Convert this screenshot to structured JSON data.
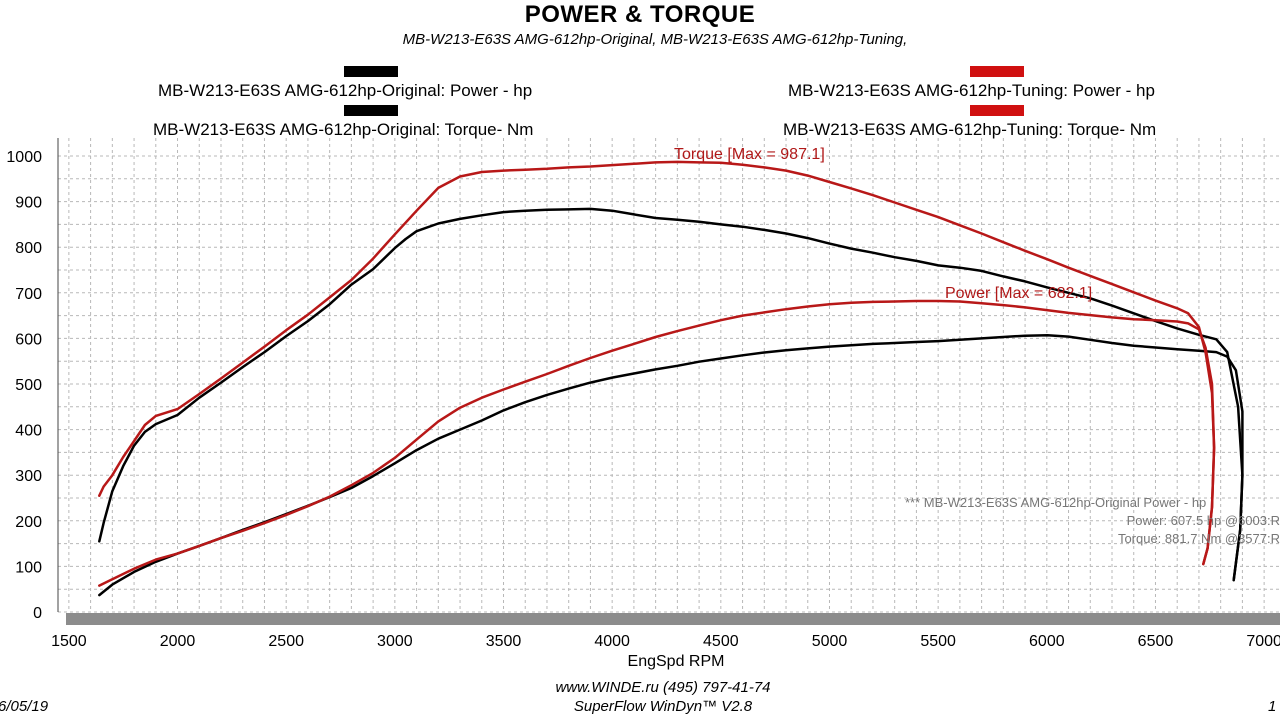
{
  "header": {
    "title": "POWER & TORQUE",
    "subtitle": "MB-W213-E63S AMG-612hp-Original, MB-W213-E63S AMG-612hp-Tuning,"
  },
  "legend": {
    "orig_power": "MB-W213-E63S AMG-612hp-Original: Power -  hp",
    "orig_torque": "MB-W213-E63S AMG-612hp-Original: Torque-  Nm",
    "tune_power": "MB-W213-E63S AMG-612hp-Tuning: Power -  hp",
    "tune_torque": "MB-W213-E63S AMG-612hp-Tuning: Torque-  Nm",
    "orig_color": "#000000",
    "tune_color": "#d01010"
  },
  "annotations": {
    "torque_max": "Torque [Max = 987.1]",
    "power_max": "Power  [Max = 682.1]",
    "summary_line1": "*** MB-W213-E63S AMG-612hp-Original  Power - hp",
    "summary_line2": "Power:  607.5 hp   @6003:R",
    "summary_line3": "Torque:  881.7 Nm   @3577:R"
  },
  "footer": {
    "website": "www.WINDE.ru   (495) 797-41-74",
    "software": "SuperFlow WinDyn™  V2.8",
    "date": "6/05/19",
    "page": "1"
  },
  "chart_data": {
    "type": "line",
    "title": "POWER & TORQUE",
    "xlabel": "EngSpd  RPM",
    "ylabel": "",
    "xlim": [
      1450,
      7050
    ],
    "ylim": [
      0,
      1000
    ],
    "xticks": [
      1500,
      2000,
      2500,
      3000,
      3500,
      4000,
      4500,
      5000,
      5500,
      6000,
      6500,
      7000
    ],
    "xtick_labels": [
      "1500",
      "2000",
      "2500",
      "3000",
      "3500",
      "4000",
      "4500",
      "5000",
      "5500",
      "6000",
      "6500",
      "7000"
    ],
    "yticks": [
      0,
      100,
      200,
      300,
      400,
      500,
      600,
      700,
      800,
      900,
      1000
    ],
    "ytick_labels": [
      "0",
      "100",
      "200",
      "300",
      "400",
      "500",
      "600",
      "700",
      "800",
      "900",
      "1000"
    ],
    "grid": true,
    "legend_position": "top",
    "series": [
      {
        "name": "MB-W213-E63S AMG-612hp-Original: Torque-  Nm",
        "color": "#000000",
        "points": [
          [
            1640,
            155
          ],
          [
            1660,
            195
          ],
          [
            1700,
            265
          ],
          [
            1750,
            320
          ],
          [
            1800,
            365
          ],
          [
            1850,
            395
          ],
          [
            1900,
            412
          ],
          [
            2000,
            432
          ],
          [
            2100,
            470
          ],
          [
            2200,
            503
          ],
          [
            2300,
            537
          ],
          [
            2400,
            570
          ],
          [
            2500,
            605
          ],
          [
            2600,
            638
          ],
          [
            2700,
            675
          ],
          [
            2800,
            718
          ],
          [
            2900,
            752
          ],
          [
            3000,
            798
          ],
          [
            3050,
            818
          ],
          [
            3100,
            835
          ],
          [
            3200,
            852
          ],
          [
            3300,
            862
          ],
          [
            3400,
            870
          ],
          [
            3500,
            877
          ],
          [
            3600,
            880
          ],
          [
            3700,
            882
          ],
          [
            3800,
            883
          ],
          [
            3900,
            884
          ],
          [
            4000,
            880
          ],
          [
            4100,
            872
          ],
          [
            4200,
            864
          ],
          [
            4300,
            860
          ],
          [
            4400,
            856
          ],
          [
            4500,
            850
          ],
          [
            4600,
            845
          ],
          [
            4700,
            838
          ],
          [
            4800,
            830
          ],
          [
            4900,
            820
          ],
          [
            5000,
            808
          ],
          [
            5100,
            797
          ],
          [
            5200,
            788
          ],
          [
            5300,
            778
          ],
          [
            5400,
            770
          ],
          [
            5500,
            760
          ],
          [
            5600,
            755
          ],
          [
            5700,
            748
          ],
          [
            5800,
            736
          ],
          [
            5900,
            725
          ],
          [
            6000,
            712
          ],
          [
            6100,
            700
          ],
          [
            6200,
            688
          ],
          [
            6300,
            672
          ],
          [
            6400,
            655
          ],
          [
            6500,
            638
          ],
          [
            6600,
            622
          ],
          [
            6700,
            608
          ],
          [
            6780,
            598
          ],
          [
            6830,
            570
          ],
          [
            6880,
            450
          ],
          [
            6900,
            300
          ],
          [
            6890,
            180
          ],
          [
            6860,
            70
          ]
        ]
      },
      {
        "name": "MB-W213-E63S AMG-612hp-Original: Power -  hp",
        "color": "#000000",
        "points": [
          [
            1640,
            37
          ],
          [
            1700,
            60
          ],
          [
            1800,
            88
          ],
          [
            1900,
            110
          ],
          [
            2000,
            128
          ],
          [
            2100,
            145
          ],
          [
            2200,
            162
          ],
          [
            2300,
            180
          ],
          [
            2400,
            197
          ],
          [
            2500,
            215
          ],
          [
            2600,
            233
          ],
          [
            2700,
            252
          ],
          [
            2800,
            272
          ],
          [
            2900,
            298
          ],
          [
            3000,
            326
          ],
          [
            3100,
            355
          ],
          [
            3200,
            380
          ],
          [
            3300,
            400
          ],
          [
            3400,
            420
          ],
          [
            3500,
            442
          ],
          [
            3600,
            460
          ],
          [
            3700,
            476
          ],
          [
            3800,
            490
          ],
          [
            3900,
            503
          ],
          [
            4000,
            514
          ],
          [
            4100,
            523
          ],
          [
            4200,
            532
          ],
          [
            4300,
            540
          ],
          [
            4400,
            549
          ],
          [
            4500,
            556
          ],
          [
            4600,
            563
          ],
          [
            4700,
            569
          ],
          [
            4800,
            574
          ],
          [
            4900,
            578
          ],
          [
            5000,
            582
          ],
          [
            5100,
            585
          ],
          [
            5200,
            588
          ],
          [
            5300,
            590
          ],
          [
            5400,
            592
          ],
          [
            5500,
            594
          ],
          [
            5600,
            597
          ],
          [
            5700,
            600
          ],
          [
            5800,
            603
          ],
          [
            5900,
            606
          ],
          [
            6003,
            607
          ],
          [
            6100,
            604
          ],
          [
            6200,
            597
          ],
          [
            6300,
            590
          ],
          [
            6400,
            584
          ],
          [
            6500,
            580
          ],
          [
            6600,
            576
          ],
          [
            6700,
            573
          ],
          [
            6780,
            570
          ],
          [
            6830,
            560
          ],
          [
            6870,
            530
          ],
          [
            6900,
            440
          ],
          [
            6900,
            300
          ],
          [
            6890,
            180
          ],
          [
            6860,
            70
          ]
        ]
      },
      {
        "name": "MB-W213-E63S AMG-612hp-Tuning: Torque-  Nm",
        "color": "#b81818",
        "points": [
          [
            1640,
            255
          ],
          [
            1660,
            275
          ],
          [
            1700,
            300
          ],
          [
            1750,
            340
          ],
          [
            1800,
            375
          ],
          [
            1850,
            410
          ],
          [
            1900,
            430
          ],
          [
            2000,
            445
          ],
          [
            2100,
            478
          ],
          [
            2200,
            512
          ],
          [
            2300,
            547
          ],
          [
            2400,
            582
          ],
          [
            2500,
            618
          ],
          [
            2600,
            652
          ],
          [
            2700,
            690
          ],
          [
            2800,
            728
          ],
          [
            2900,
            775
          ],
          [
            3000,
            828
          ],
          [
            3100,
            880
          ],
          [
            3200,
            930
          ],
          [
            3300,
            955
          ],
          [
            3400,
            965
          ],
          [
            3500,
            968
          ],
          [
            3600,
            970
          ],
          [
            3700,
            972
          ],
          [
            3800,
            975
          ],
          [
            3900,
            977
          ],
          [
            4000,
            980
          ],
          [
            4100,
            983
          ],
          [
            4200,
            986
          ],
          [
            4300,
            987
          ],
          [
            4400,
            986
          ],
          [
            4500,
            985
          ],
          [
            4600,
            981
          ],
          [
            4700,
            975
          ],
          [
            4800,
            968
          ],
          [
            4900,
            957
          ],
          [
            5000,
            943
          ],
          [
            5100,
            929
          ],
          [
            5200,
            914
          ],
          [
            5300,
            898
          ],
          [
            5400,
            882
          ],
          [
            5500,
            866
          ],
          [
            5600,
            848
          ],
          [
            5700,
            830
          ],
          [
            5800,
            811
          ],
          [
            5900,
            792
          ],
          [
            6000,
            774
          ],
          [
            6100,
            755
          ],
          [
            6200,
            737
          ],
          [
            6300,
            719
          ],
          [
            6400,
            701
          ],
          [
            6500,
            683
          ],
          [
            6600,
            666
          ],
          [
            6650,
            655
          ],
          [
            6700,
            625
          ],
          [
            6730,
            570
          ],
          [
            6760,
            480
          ],
          [
            6770,
            360
          ],
          [
            6760,
            230
          ],
          [
            6740,
            140
          ],
          [
            6720,
            105
          ]
        ]
      },
      {
        "name": "MB-W213-E63S AMG-612hp-Tuning: Power -  hp",
        "color": "#b81818",
        "points": [
          [
            1640,
            58
          ],
          [
            1700,
            72
          ],
          [
            1800,
            95
          ],
          [
            1900,
            115
          ],
          [
            2000,
            128
          ],
          [
            2100,
            145
          ],
          [
            2200,
            162
          ],
          [
            2300,
            178
          ],
          [
            2400,
            195
          ],
          [
            2500,
            213
          ],
          [
            2600,
            232
          ],
          [
            2700,
            253
          ],
          [
            2800,
            278
          ],
          [
            2900,
            305
          ],
          [
            3000,
            338
          ],
          [
            3100,
            378
          ],
          [
            3200,
            418
          ],
          [
            3300,
            448
          ],
          [
            3400,
            470
          ],
          [
            3500,
            488
          ],
          [
            3600,
            505
          ],
          [
            3700,
            522
          ],
          [
            3800,
            540
          ],
          [
            3900,
            557
          ],
          [
            4000,
            573
          ],
          [
            4100,
            588
          ],
          [
            4200,
            603
          ],
          [
            4300,
            616
          ],
          [
            4400,
            628
          ],
          [
            4500,
            640
          ],
          [
            4600,
            650
          ],
          [
            4700,
            657
          ],
          [
            4800,
            664
          ],
          [
            4900,
            670
          ],
          [
            5000,
            675
          ],
          [
            5100,
            678
          ],
          [
            5200,
            680
          ],
          [
            5300,
            681
          ],
          [
            5400,
            682
          ],
          [
            5500,
            682
          ],
          [
            5600,
            681
          ],
          [
            5700,
            677
          ],
          [
            5800,
            673
          ],
          [
            5900,
            668
          ],
          [
            6000,
            662
          ],
          [
            6100,
            656
          ],
          [
            6200,
            651
          ],
          [
            6300,
            646
          ],
          [
            6400,
            642
          ],
          [
            6500,
            640
          ],
          [
            6600,
            637
          ],
          [
            6650,
            633
          ],
          [
            6700,
            620
          ],
          [
            6730,
            580
          ],
          [
            6760,
            500
          ],
          [
            6770,
            360
          ],
          [
            6760,
            230
          ],
          [
            6740,
            140
          ],
          [
            6720,
            105
          ]
        ]
      }
    ]
  }
}
